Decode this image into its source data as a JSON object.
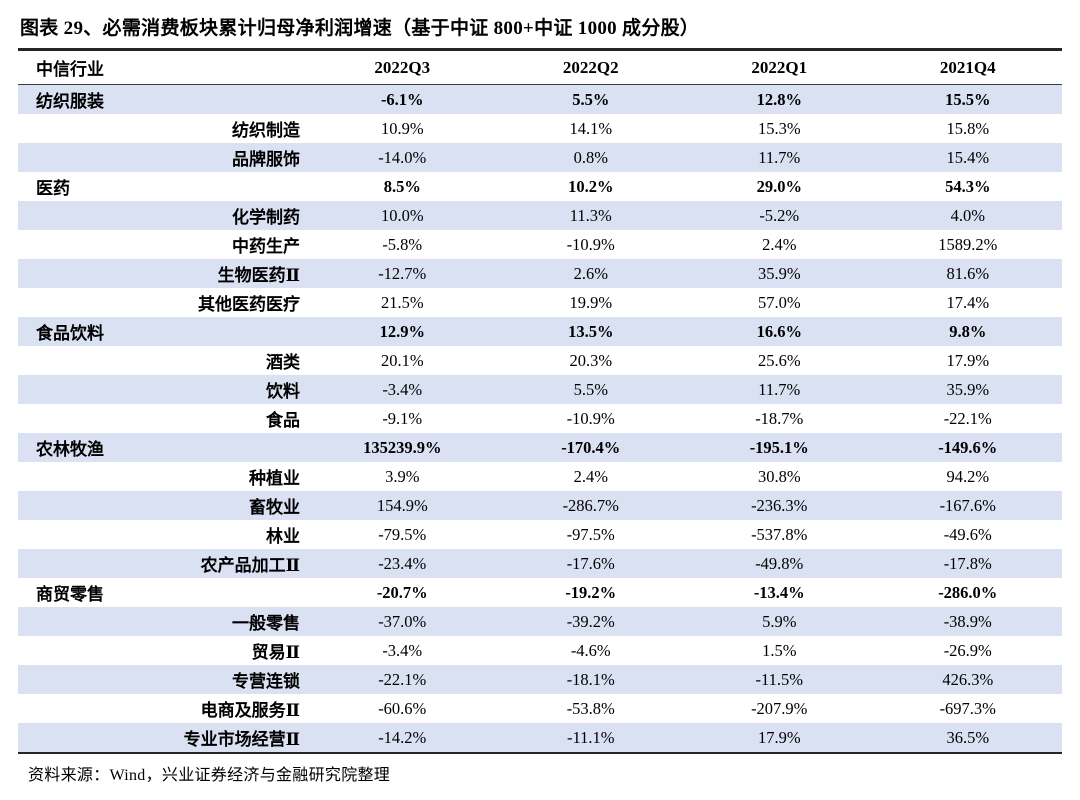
{
  "figure": {
    "title": "图表 29、必需消费板块累计归母净利润增速（基于中证 800+中证 1000 成分股）",
    "source": "资料来源：Wind，兴业证券经济与金融研究院整理"
  },
  "colors": {
    "row_band": "#D9E1F2",
    "border_strong": "#262626",
    "border_mid": "#3a3a3a",
    "text": "#000000"
  },
  "table": {
    "header": {
      "industry": "中信行业",
      "quarters": [
        "2022Q3",
        "2022Q2",
        "2022Q1",
        "2021Q4"
      ]
    },
    "rows": [
      {
        "label": "纺织服装",
        "level": "parent",
        "values": [
          "-6.1%",
          "5.5%",
          "12.8%",
          "15.5%"
        ]
      },
      {
        "label": "纺织制造",
        "level": "sub",
        "values": [
          "10.9%",
          "14.1%",
          "15.3%",
          "15.8%"
        ]
      },
      {
        "label": "品牌服饰",
        "level": "sub",
        "values": [
          "-14.0%",
          "0.8%",
          "11.7%",
          "15.4%"
        ]
      },
      {
        "label": "医药",
        "level": "parent",
        "values": [
          "8.5%",
          "10.2%",
          "29.0%",
          "54.3%"
        ]
      },
      {
        "label": "化学制药",
        "level": "sub",
        "values": [
          "10.0%",
          "11.3%",
          "-5.2%",
          "4.0%"
        ]
      },
      {
        "label": "中药生产",
        "level": "sub",
        "values": [
          "-5.8%",
          "-10.9%",
          "2.4%",
          "1589.2%"
        ]
      },
      {
        "label": "生物医药Ⅱ",
        "level": "sub",
        "values": [
          "-12.7%",
          "2.6%",
          "35.9%",
          "81.6%"
        ]
      },
      {
        "label": "其他医药医疗",
        "level": "sub",
        "values": [
          "21.5%",
          "19.9%",
          "57.0%",
          "17.4%"
        ]
      },
      {
        "label": "食品饮料",
        "level": "parent",
        "values": [
          "12.9%",
          "13.5%",
          "16.6%",
          "9.8%"
        ]
      },
      {
        "label": "酒类",
        "level": "sub",
        "values": [
          "20.1%",
          "20.3%",
          "25.6%",
          "17.9%"
        ]
      },
      {
        "label": "饮料",
        "level": "sub",
        "values": [
          "-3.4%",
          "5.5%",
          "11.7%",
          "35.9%"
        ]
      },
      {
        "label": "食品",
        "level": "sub",
        "values": [
          "-9.1%",
          "-10.9%",
          "-18.7%",
          "-22.1%"
        ]
      },
      {
        "label": "农林牧渔",
        "level": "parent",
        "values": [
          "135239.9%",
          "-170.4%",
          "-195.1%",
          "-149.6%"
        ]
      },
      {
        "label": "种植业",
        "level": "sub",
        "values": [
          "3.9%",
          "2.4%",
          "30.8%",
          "94.2%"
        ]
      },
      {
        "label": "畜牧业",
        "level": "sub",
        "values": [
          "154.9%",
          "-286.7%",
          "-236.3%",
          "-167.6%"
        ]
      },
      {
        "label": "林业",
        "level": "sub",
        "values": [
          "-79.5%",
          "-97.5%",
          "-537.8%",
          "-49.6%"
        ]
      },
      {
        "label": "农产品加工Ⅱ",
        "level": "sub",
        "values": [
          "-23.4%",
          "-17.6%",
          "-49.8%",
          "-17.8%"
        ]
      },
      {
        "label": "商贸零售",
        "level": "parent",
        "values": [
          "-20.7%",
          "-19.2%",
          "-13.4%",
          "-286.0%"
        ]
      },
      {
        "label": "一般零售",
        "level": "sub",
        "values": [
          "-37.0%",
          "-39.2%",
          "5.9%",
          "-38.9%"
        ]
      },
      {
        "label": "贸易Ⅱ",
        "level": "sub",
        "values": [
          "-3.4%",
          "-4.6%",
          "1.5%",
          "-26.9%"
        ]
      },
      {
        "label": "专营连锁",
        "level": "sub",
        "values": [
          "-22.1%",
          "-18.1%",
          "-11.5%",
          "426.3%"
        ]
      },
      {
        "label": "电商及服务Ⅱ",
        "level": "sub",
        "values": [
          "-60.6%",
          "-53.8%",
          "-207.9%",
          "-697.3%"
        ]
      },
      {
        "label": "专业市场经营Ⅱ",
        "level": "sub",
        "values": [
          "-14.2%",
          "-11.1%",
          "17.9%",
          "36.5%"
        ]
      }
    ]
  }
}
